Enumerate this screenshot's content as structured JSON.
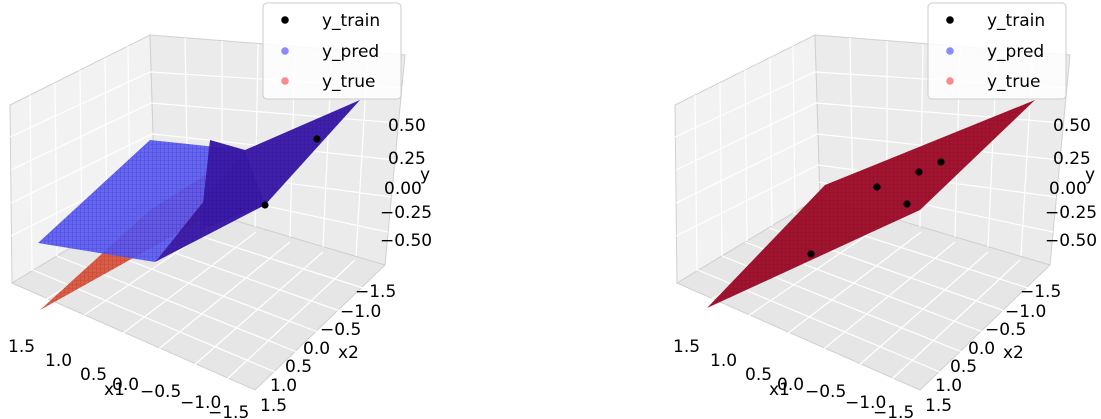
{
  "chart_data": [
    {
      "type": "surface3d",
      "xlabel": "x1",
      "ylabel": "x2",
      "zlabel": "y",
      "x_ticks": [
        "1.5",
        "1.0",
        "0.5",
        "0.0",
        "−0.5",
        "−1.0",
        "−1.5"
      ],
      "y_ticks": [
        "−1.5",
        "−1.0",
        "−0.5",
        "0.0",
        "0.5",
        "1.0",
        "1.5"
      ],
      "z_ticks": [
        "0.50",
        "0.25",
        "0.00",
        "−0.25",
        "−0.50"
      ],
      "legend": {
        "placement": "top-right",
        "entries": [
          {
            "label": "y_train",
            "color": "#000000",
            "marker": "point"
          },
          {
            "label": "y_pred",
            "color": "#0000ff",
            "marker": "point",
            "alpha": 0.45
          },
          {
            "label": "y_true",
            "color": "#ff0000",
            "marker": "point",
            "alpha": 0.45
          }
        ]
      },
      "series": [
        {
          "name": "y_train",
          "points": [
            [
              1.5,
              -1.4,
              0.55
            ],
            [
              -0.2,
              0.6,
              -0.15
            ]
          ]
        },
        {
          "name": "y_pred",
          "plane": {
            "z_at_x_max": 0.25,
            "z_at_x_min": 0.25,
            "slope_x2": 0.35
          }
        },
        {
          "name": "y_true",
          "plane": {
            "slope_x1": 0.4,
            "slope_x2": 0.35
          }
        }
      ]
    },
    {
      "type": "surface3d",
      "xlabel": "x1",
      "ylabel": "x2",
      "zlabel": "y",
      "x_ticks": [
        "1.5",
        "1.0",
        "0.5",
        "0.0",
        "−0.5",
        "−1.0",
        "−1.5"
      ],
      "y_ticks": [
        "−1.5",
        "−1.0",
        "−0.5",
        "0.0",
        "0.5",
        "1.0",
        "1.5"
      ],
      "z_ticks": [
        "0.50",
        "0.25",
        "0.00",
        "−0.25",
        "−0.50"
      ],
      "legend": {
        "placement": "top-right",
        "entries": [
          {
            "label": "y_train",
            "color": "#000000",
            "marker": "point"
          },
          {
            "label": "y_pred",
            "color": "#0000ff",
            "marker": "point",
            "alpha": 0.45
          },
          {
            "label": "y_true",
            "color": "#ff0000",
            "marker": "point",
            "alpha": 0.45
          }
        ]
      },
      "series": [
        {
          "name": "y_train",
          "points": [
            [
              0.9,
              0.5,
              -0.3
            ],
            [
              0.3,
              -0.4,
              0.1
            ],
            [
              -0.2,
              -0.2,
              0.15
            ],
            [
              -0.5,
              -0.6,
              0.2
            ],
            [
              0.2,
              0.3,
              -0.05
            ]
          ]
        },
        {
          "name": "y_pred",
          "plane": {
            "slope_x1": 0.4,
            "slope_x2": 0.35
          }
        },
        {
          "name": "y_true",
          "plane": {
            "slope_x1": 0.4,
            "slope_x2": 0.35
          }
        }
      ]
    }
  ]
}
